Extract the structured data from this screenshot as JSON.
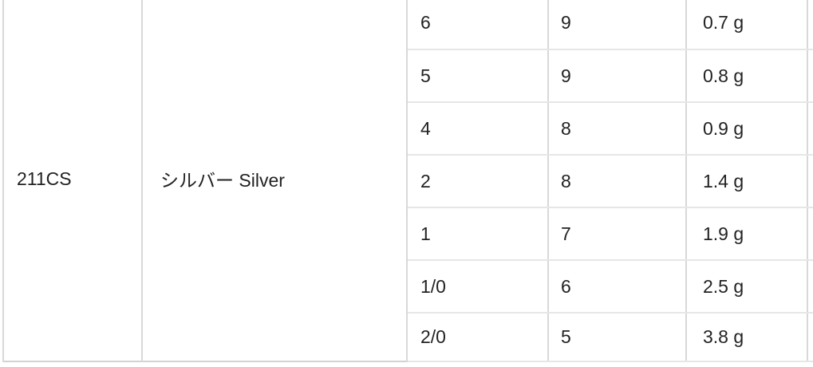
{
  "spec_table": {
    "model": "211CS",
    "color_name": "シルバー Silver",
    "rows": [
      {
        "size": "6",
        "pack_qty": "9",
        "weight": "0.7 g"
      },
      {
        "size": "5",
        "pack_qty": "9",
        "weight": "0.8 g"
      },
      {
        "size": "4",
        "pack_qty": "8",
        "weight": "0.9 g"
      },
      {
        "size": "2",
        "pack_qty": "8",
        "weight": "1.4 g"
      },
      {
        "size": "1",
        "pack_qty": "7",
        "weight": "1.9 g"
      },
      {
        "size": "1/0",
        "pack_qty": "6",
        "weight": "2.5 g"
      },
      {
        "size": "2/0",
        "pack_qty": "5",
        "weight": "3.8 g"
      }
    ],
    "colors": {
      "text": "#222222",
      "background": "#ffffff",
      "border_vertical": "#d8d8d8",
      "border_horizontal": "#e6e6e6",
      "border_bottom": "#d2d2d2"
    }
  }
}
